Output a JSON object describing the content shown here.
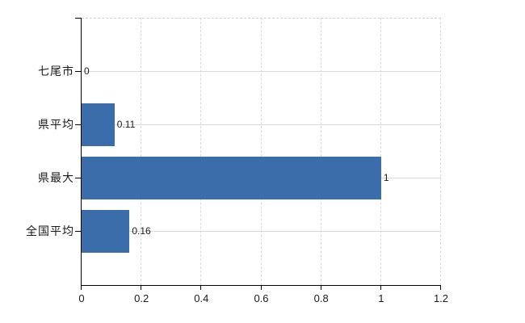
{
  "chart_data": {
    "type": "bar",
    "orientation": "horizontal",
    "title": "",
    "categories": [
      "七尾市",
      "県平均",
      "県最大",
      "全国平均"
    ],
    "values": [
      0,
      0.11,
      1,
      0.16
    ],
    "value_labels": [
      "0",
      "0.11",
      "1",
      "0.16"
    ],
    "xlim": [
      0,
      1.2
    ],
    "x_ticks": [
      0,
      0.2,
      0.4,
      0.6,
      0.8,
      1,
      1.2
    ],
    "x_tick_labels": [
      "0",
      "0.2",
      "0.4",
      "0.6",
      "0.8",
      "1",
      "1.2"
    ],
    "xlabel": "",
    "ylabel": "",
    "grid": true,
    "legend_position": "none",
    "bar_color": "#3B6DAA",
    "gridline_color": "#d9d9d9",
    "axis_color": "#000000",
    "text_color": "#1a1a1a",
    "background_color": "#ffffff"
  }
}
